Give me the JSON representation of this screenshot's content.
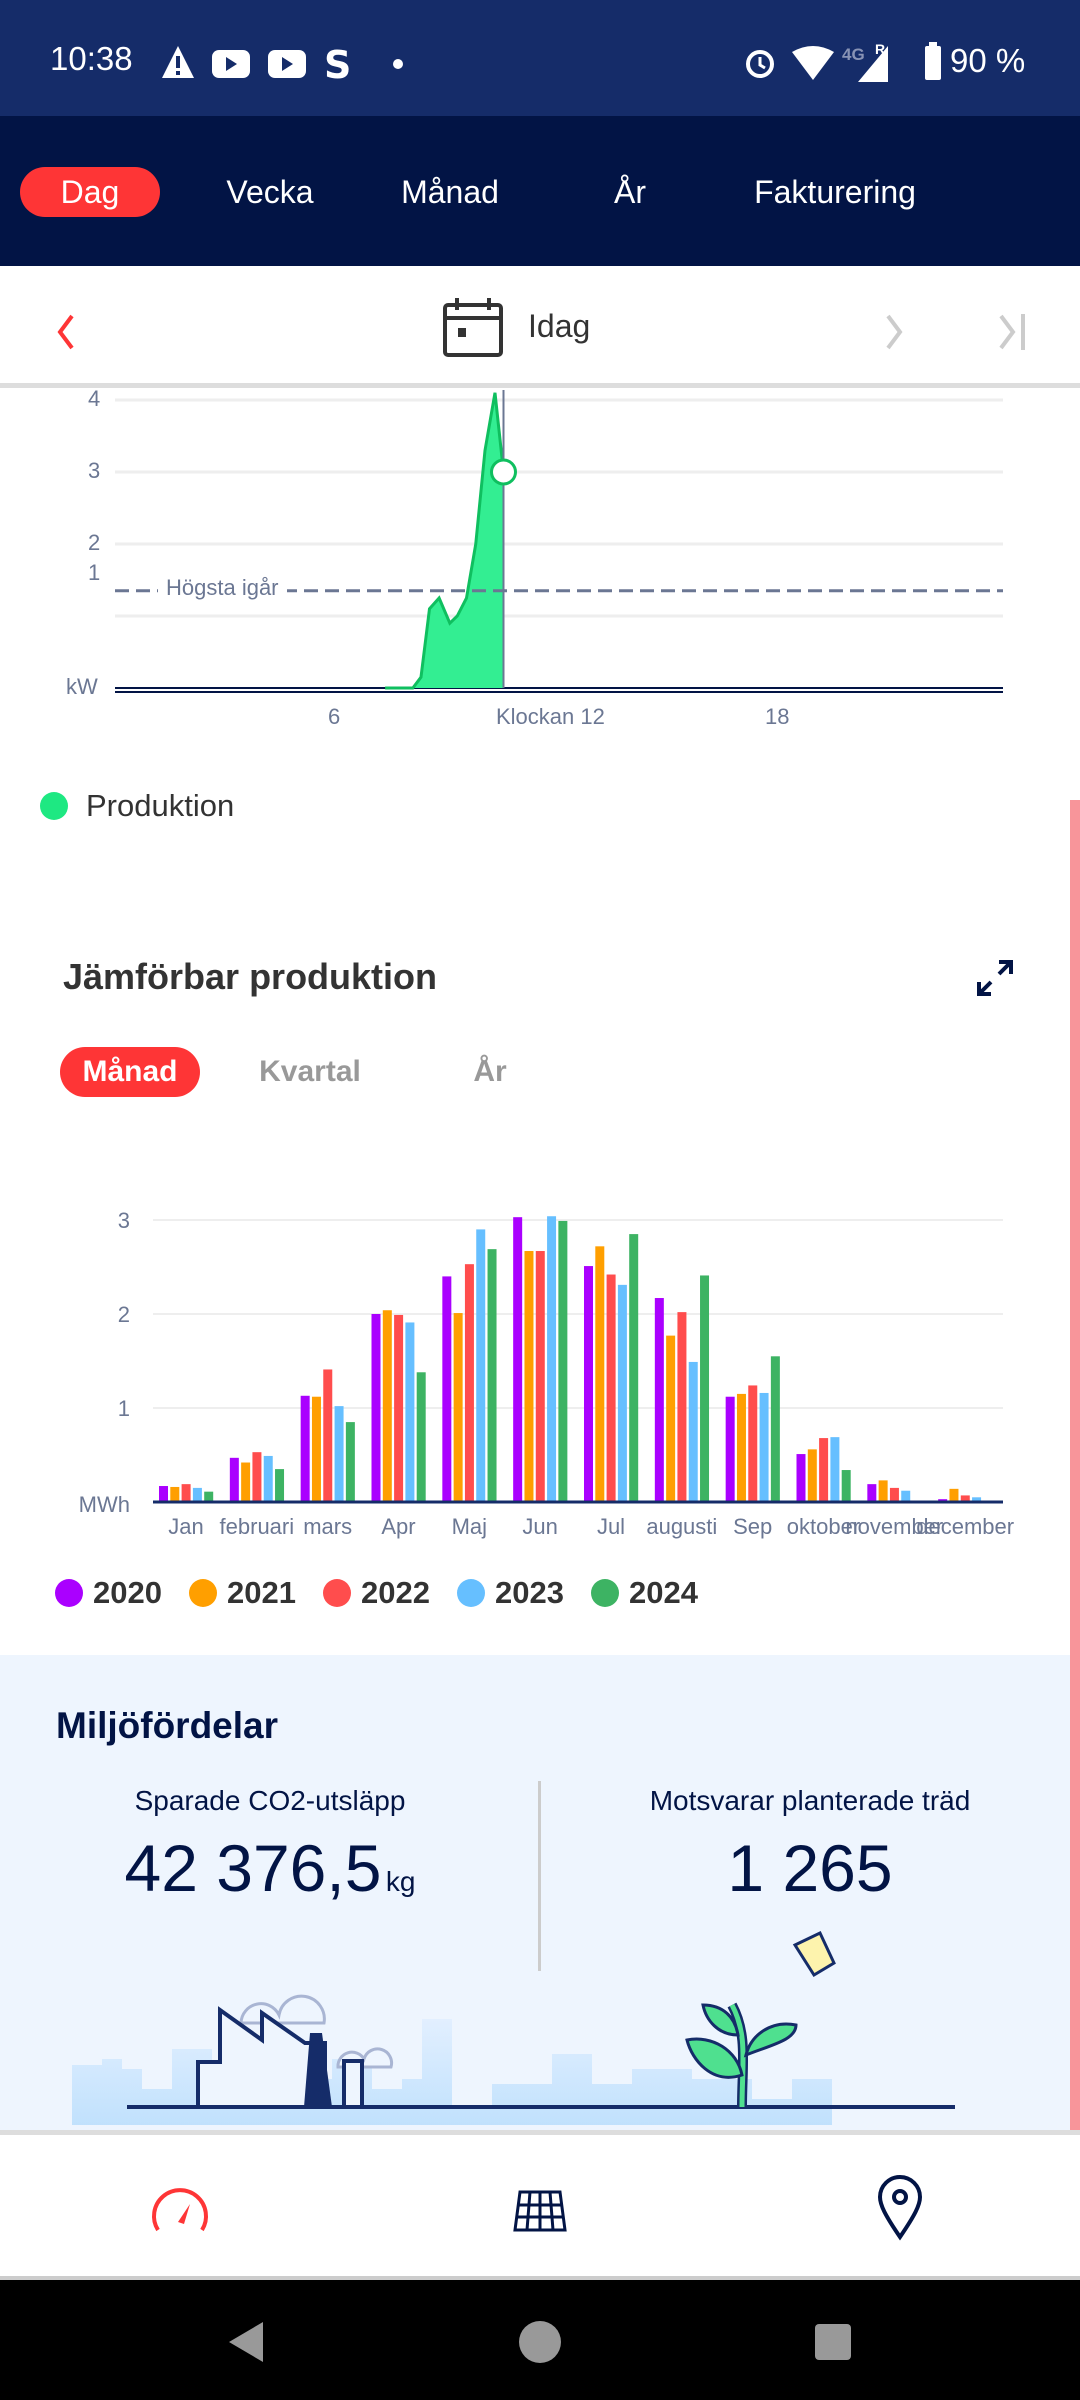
{
  "status_bar": {
    "time": "10:38",
    "battery": "90 %",
    "network": "4G",
    "roaming": "R"
  },
  "tabs": [
    {
      "label": "Dag",
      "active": true
    },
    {
      "label": "Vecka"
    },
    {
      "label": "Månad"
    },
    {
      "label": "År"
    },
    {
      "label": "Fakturering"
    }
  ],
  "date_nav": {
    "label": "Idag"
  },
  "power_chart": {
    "type": "area",
    "unit": "kW",
    "y_ticks": [
      "1",
      "2",
      "3",
      "4"
    ],
    "ylim": [
      0,
      4.4
    ],
    "xlim": [
      0,
      24
    ],
    "x_ticks": [
      {
        "hour": 6,
        "label": "6"
      },
      {
        "hour": 12,
        "label": "Klockan 12"
      },
      {
        "hour": 18,
        "label": "18"
      }
    ],
    "reference_line": {
      "label": "Högsta igår",
      "value": 1.35
    },
    "cursor_hour": 10.5,
    "cursor_value": 3.0,
    "series": {
      "name": "Produktion",
      "color": "#1ee882",
      "points": [
        [
          7.3,
          0
        ],
        [
          8.05,
          0
        ],
        [
          8.27,
          0.15
        ],
        [
          8.5,
          1.1
        ],
        [
          8.76,
          1.25
        ],
        [
          9.05,
          0.9
        ],
        [
          9.25,
          1.0
        ],
        [
          9.5,
          1.25
        ],
        [
          9.75,
          2.0
        ],
        [
          10.0,
          3.3
        ],
        [
          10.27,
          4.1
        ],
        [
          10.5,
          3.0
        ]
      ]
    }
  },
  "legend_production": "Produktion",
  "comparison": {
    "title": "Jämförbar produktion",
    "periods": [
      {
        "label": "Månad",
        "active": true
      },
      {
        "label": "Kvartal"
      },
      {
        "label": "År"
      }
    ]
  },
  "chart_data": {
    "type": "bar",
    "title": "Jämförbar produktion",
    "ylabel": "MWh",
    "ylim": [
      0,
      3.3
    ],
    "y_ticks": [
      "1",
      "2",
      "3"
    ],
    "grid": true,
    "legend_position": "bottom",
    "categories": [
      "Jan",
      "februari",
      "mars",
      "Apr",
      "Maj",
      "Jun",
      "Jul",
      "augusti",
      "Sep",
      "oktober",
      "november",
      "december"
    ],
    "series": [
      {
        "name": "2020",
        "color": "#aa00ff",
        "values": [
          0.17,
          0.47,
          1.13,
          2.0,
          2.4,
          3.03,
          2.51,
          2.17,
          1.12,
          0.51,
          0.19,
          0.03
        ]
      },
      {
        "name": "2021",
        "color": "#ff9f00",
        "values": [
          0.16,
          0.42,
          1.12,
          2.04,
          2.01,
          2.67,
          2.72,
          1.77,
          1.15,
          0.56,
          0.23,
          0.14
        ]
      },
      {
        "name": "2022",
        "color": "#ff4d4d",
        "values": [
          0.19,
          0.53,
          1.41,
          1.99,
          2.53,
          2.67,
          2.42,
          2.02,
          1.24,
          0.68,
          0.15,
          0.07
        ]
      },
      {
        "name": "2023",
        "color": "#66bfff",
        "values": [
          0.15,
          0.49,
          1.02,
          1.91,
          2.9,
          3.04,
          2.31,
          1.49,
          1.16,
          0.69,
          0.12,
          0.05
        ]
      },
      {
        "name": "2024",
        "color": "#3db363",
        "values": [
          0.11,
          0.35,
          0.85,
          1.38,
          2.69,
          2.99,
          2.85,
          2.41,
          1.55,
          0.34,
          0,
          0
        ]
      }
    ]
  },
  "environment": {
    "title": "Miljöfördelar",
    "co2_label": "Sparade CO2-utsläpp",
    "co2_value": "42 376,5",
    "co2_unit": "kg",
    "trees_label": "Motsvarar planterade träd",
    "trees_value": "1 265"
  },
  "colors": {
    "accent": "#fe3536",
    "navy": "#021445",
    "status": "#152c69"
  }
}
